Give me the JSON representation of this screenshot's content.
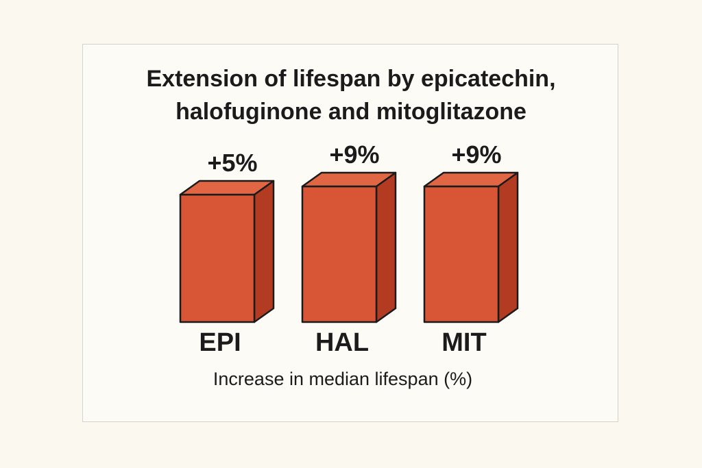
{
  "chart_data": {
    "type": "bar",
    "title": "Extension of lifespan by epicatechin, halofuginone and mitoglitazone",
    "title_lines": [
      "Extension of lifespan by epicatechin,",
      "halofuginone and mitoglitazone"
    ],
    "categories": [
      "EPI",
      "HAL",
      "MIT"
    ],
    "values": [
      5,
      9,
      9
    ],
    "value_labels": [
      "+5%",
      "+9%",
      "+9%"
    ],
    "xlabel": "Increase in median lifespan (%)",
    "ylabel": "",
    "grid": false,
    "legend": "none",
    "style": "3d-bars"
  },
  "colors": {
    "bar_front": "#d85535",
    "bar_top": "#e06644",
    "bar_side": "#b33b22",
    "outline": "#1b1b1b",
    "background": "#fbf8ef"
  }
}
